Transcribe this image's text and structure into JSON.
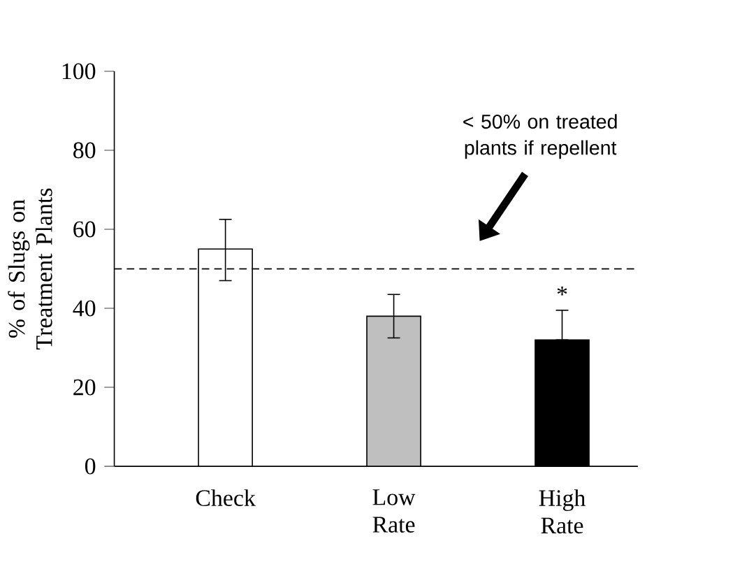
{
  "chart_data": {
    "type": "bar",
    "ylabel": "% of Slugs on Treatment Plants",
    "categories": [
      "Check",
      "Low Rate",
      "High Rate"
    ],
    "values": [
      55,
      38,
      32
    ],
    "colors": [
      "#ffffff",
      "#bfbfbf",
      "#000000"
    ],
    "errors": [
      [
        47,
        62.5
      ],
      [
        32.5,
        43.5
      ],
      [
        32,
        39.5
      ]
    ],
    "ylim": [
      0,
      100
    ],
    "yticks": [
      0,
      20,
      40,
      60,
      80,
      100
    ],
    "ref_lines": [
      {
        "axis": "y",
        "value": 50,
        "line_style": "dashed",
        "color": "#000000"
      }
    ],
    "annotations": [
      "< 50% on treated plants if repellent",
      "*"
    ],
    "grid": false
  }
}
